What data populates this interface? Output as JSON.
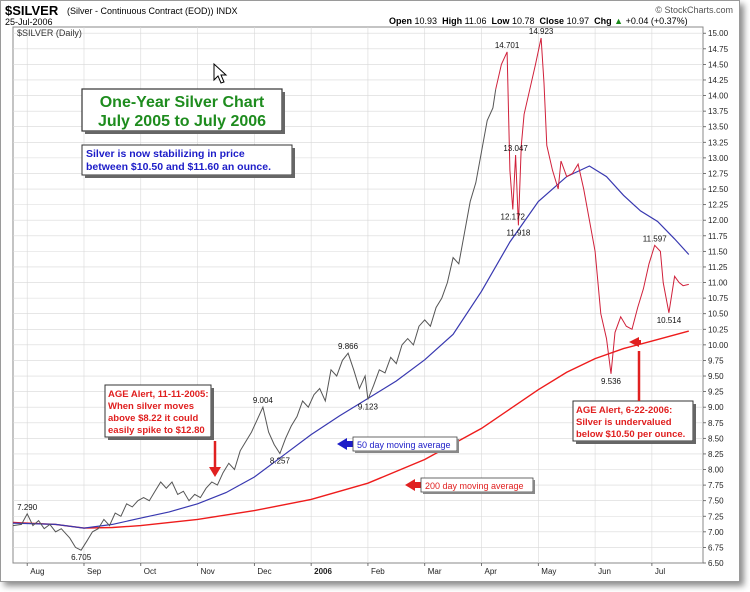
{
  "header": {
    "ticker": "$SILVER",
    "description": "(Silver - Continuous Contract (EOD))",
    "exchange": "INDX",
    "date": "25-Jul-2006",
    "credit": "© StockCharts.com",
    "open_label": "Open",
    "open": "10.93",
    "high_label": "High",
    "high": "11.06",
    "low_label": "Low",
    "low": "10.78",
    "close_label": "Close",
    "close": "10.97",
    "chg_label": "Chg",
    "chg": "+0.04 (+0.37%)",
    "chg_arrow": "▲"
  },
  "panel_label": "$SILVER (Daily)",
  "annotations": {
    "title_line1": "One-Year Silver Chart",
    "title_line2": "July 2005 to July 2006",
    "note_line1": "Silver is now stabilizing in price",
    "note_line2": "between $10.50 and $11.60 an ounce.",
    "alert1_line1": "AGE Alert, 11-11-2005:",
    "alert1_line2": "When silver moves",
    "alert1_line3": "above $8.22 it could",
    "alert1_line4": "easily spike to $12.80",
    "alert2_line1": "AGE Alert, 6-22-2006:",
    "alert2_line2": "Silver is undervalued",
    "alert2_line3": "below $10.50 per ounce.",
    "ma50_label": "50 day moving average",
    "ma200_label": "200 day moving average"
  },
  "colors": {
    "price": "#555555",
    "price_recent": "#d0203a",
    "ma50": "#3838b0",
    "ma200": "#ee1c1c",
    "title_green": "#1e8c1e",
    "alert_red": "#e02020",
    "note_blue": "#1c1cc8",
    "grid": "#d8d8d8"
  },
  "chart_data": {
    "type": "line",
    "x_unit": "month index (0 = 1 Aug 2005)",
    "xlim": [
      -0.25,
      11.9
    ],
    "ylim": [
      6.5,
      15.1
    ],
    "y_ticks": [
      6.5,
      6.75,
      7.0,
      7.25,
      7.5,
      7.75,
      8.0,
      8.25,
      8.5,
      8.75,
      9.0,
      9.25,
      9.5,
      9.75,
      10.0,
      10.25,
      10.5,
      10.75,
      11.0,
      11.25,
      11.5,
      11.75,
      12.0,
      12.25,
      12.5,
      12.75,
      13.0,
      13.25,
      13.5,
      13.75,
      14.0,
      14.25,
      14.5,
      14.75,
      15.0
    ],
    "x_ticks": [
      {
        "x": 0,
        "label": "Aug",
        "bold": false
      },
      {
        "x": 1,
        "label": "Sep",
        "bold": false
      },
      {
        "x": 2,
        "label": "Oct",
        "bold": false
      },
      {
        "x": 3,
        "label": "Nov",
        "bold": false
      },
      {
        "x": 4,
        "label": "Dec",
        "bold": false
      },
      {
        "x": 5,
        "label": "2006",
        "bold": true
      },
      {
        "x": 6,
        "label": "Feb",
        "bold": false
      },
      {
        "x": 7,
        "label": "Mar",
        "bold": false
      },
      {
        "x": 8,
        "label": "Apr",
        "bold": false
      },
      {
        "x": 9,
        "label": "May",
        "bold": false
      },
      {
        "x": 10,
        "label": "Jun",
        "bold": false
      },
      {
        "x": 11,
        "label": "Jul",
        "bold": false
      }
    ],
    "grid": true,
    "series": [
      {
        "name": "$SILVER",
        "points": [
          [
            -0.25,
            7.1
          ],
          [
            -0.1,
            7.12
          ],
          [
            0.0,
            7.29
          ],
          [
            0.1,
            7.1
          ],
          [
            0.2,
            7.18
          ],
          [
            0.3,
            7.05
          ],
          [
            0.4,
            7.12
          ],
          [
            0.5,
            7.0
          ],
          [
            0.6,
            7.05
          ],
          [
            0.75,
            6.9
          ],
          [
            0.85,
            6.75
          ],
          [
            0.95,
            6.705
          ],
          [
            1.05,
            6.85
          ],
          [
            1.15,
            7.0
          ],
          [
            1.25,
            7.05
          ],
          [
            1.35,
            7.2
          ],
          [
            1.45,
            7.1
          ],
          [
            1.55,
            7.3
          ],
          [
            1.65,
            7.25
          ],
          [
            1.75,
            7.45
          ],
          [
            1.85,
            7.4
          ],
          [
            1.95,
            7.5
          ],
          [
            2.05,
            7.55
          ],
          [
            2.15,
            7.5
          ],
          [
            2.25,
            7.65
          ],
          [
            2.35,
            7.8
          ],
          [
            2.45,
            7.7
          ],
          [
            2.55,
            7.8
          ],
          [
            2.65,
            7.6
          ],
          [
            2.75,
            7.65
          ],
          [
            2.85,
            7.5
          ],
          [
            2.95,
            7.6
          ],
          [
            3.05,
            7.55
          ],
          [
            3.15,
            7.7
          ],
          [
            3.25,
            7.8
          ],
          [
            3.35,
            7.75
          ],
          [
            3.45,
            7.95
          ],
          [
            3.55,
            8.1
          ],
          [
            3.65,
            8.0
          ],
          [
            3.75,
            8.3
          ],
          [
            3.85,
            8.45
          ],
          [
            3.95,
            8.6
          ],
          [
            4.05,
            8.8
          ],
          [
            4.15,
            9.0
          ],
          [
            4.25,
            8.6
          ],
          [
            4.35,
            8.4
          ],
          [
            4.45,
            8.257
          ],
          [
            4.55,
            8.5
          ],
          [
            4.65,
            8.7
          ],
          [
            4.75,
            8.85
          ],
          [
            4.85,
            9.1
          ],
          [
            4.95,
            9.0
          ],
          [
            5.05,
            9.2
          ],
          [
            5.15,
            9.3
          ],
          [
            5.25,
            9.1
          ],
          [
            5.35,
            9.6
          ],
          [
            5.45,
            9.5
          ],
          [
            5.55,
            9.75
          ],
          [
            5.65,
            9.866
          ],
          [
            5.75,
            9.6
          ],
          [
            5.85,
            9.3
          ],
          [
            5.95,
            9.5
          ],
          [
            6.0,
            9.123
          ],
          [
            6.1,
            9.35
          ],
          [
            6.2,
            9.6
          ],
          [
            6.3,
            9.55
          ],
          [
            6.4,
            9.8
          ],
          [
            6.5,
            9.7
          ],
          [
            6.6,
            10.0
          ],
          [
            6.7,
            10.1
          ],
          [
            6.8,
            10.0
          ],
          [
            6.9,
            10.3
          ],
          [
            7.0,
            10.4
          ],
          [
            7.1,
            10.3
          ],
          [
            7.2,
            10.6
          ],
          [
            7.3,
            10.75
          ],
          [
            7.4,
            11.0
          ],
          [
            7.5,
            11.4
          ],
          [
            7.6,
            11.3
          ],
          [
            7.7,
            11.8
          ],
          [
            7.8,
            12.3
          ],
          [
            7.9,
            12.6
          ],
          [
            8.0,
            13.1
          ],
          [
            8.1,
            13.6
          ],
          [
            8.2,
            13.8
          ],
          [
            8.25,
            14.1
          ],
          [
            8.35,
            14.5
          ],
          [
            8.45,
            14.701
          ],
          [
            8.5,
            12.8
          ],
          [
            8.55,
            12.172
          ],
          [
            8.6,
            13.047
          ],
          [
            8.65,
            11.918
          ],
          [
            8.7,
            13.2
          ],
          [
            8.75,
            13.7
          ],
          [
            8.85,
            14.1
          ],
          [
            8.95,
            14.5
          ],
          [
            9.05,
            14.923
          ],
          [
            9.1,
            14.2
          ],
          [
            9.15,
            13.2
          ],
          [
            9.25,
            12.8
          ],
          [
            9.35,
            12.5
          ],
          [
            9.4,
            12.95
          ],
          [
            9.5,
            12.7
          ],
          [
            9.6,
            12.75
          ],
          [
            9.7,
            12.9
          ],
          [
            9.8,
            12.5
          ],
          [
            9.9,
            12.0
          ],
          [
            10.0,
            11.5
          ],
          [
            10.1,
            10.5
          ],
          [
            10.2,
            10.1
          ],
          [
            10.28,
            9.536
          ],
          [
            10.35,
            10.2
          ],
          [
            10.45,
            10.45
          ],
          [
            10.55,
            10.3
          ],
          [
            10.65,
            10.25
          ],
          [
            10.75,
            10.6
          ],
          [
            10.85,
            10.9
          ],
          [
            10.95,
            11.3
          ],
          [
            11.05,
            11.597
          ],
          [
            11.15,
            11.5
          ],
          [
            11.2,
            11.0
          ],
          [
            11.3,
            10.514
          ],
          [
            11.4,
            11.1
          ],
          [
            11.48,
            11.0
          ],
          [
            11.55,
            10.95
          ],
          [
            11.65,
            10.97
          ]
        ]
      },
      {
        "name": "50 day moving average",
        "points": [
          [
            -0.25,
            7.14
          ],
          [
            0.5,
            7.12
          ],
          [
            1.0,
            7.06
          ],
          [
            1.5,
            7.12
          ],
          [
            2.0,
            7.22
          ],
          [
            2.5,
            7.32
          ],
          [
            3.0,
            7.45
          ],
          [
            3.5,
            7.63
          ],
          [
            4.0,
            7.88
          ],
          [
            4.5,
            8.22
          ],
          [
            5.0,
            8.56
          ],
          [
            5.5,
            8.86
          ],
          [
            6.0,
            9.14
          ],
          [
            6.5,
            9.42
          ],
          [
            7.0,
            9.76
          ],
          [
            7.5,
            10.17
          ],
          [
            8.0,
            10.86
          ],
          [
            8.5,
            11.65
          ],
          [
            9.0,
            12.3
          ],
          [
            9.5,
            12.7
          ],
          [
            9.9,
            12.87
          ],
          [
            10.2,
            12.7
          ],
          [
            10.5,
            12.4
          ],
          [
            10.8,
            12.15
          ],
          [
            11.1,
            11.98
          ],
          [
            11.4,
            11.7
          ],
          [
            11.65,
            11.45
          ]
        ]
      },
      {
        "name": "200 day moving average",
        "points": [
          [
            -0.25,
            7.15
          ],
          [
            0.5,
            7.12
          ],
          [
            1.0,
            7.06
          ],
          [
            1.5,
            7.07
          ],
          [
            2.0,
            7.1
          ],
          [
            3.0,
            7.2
          ],
          [
            4.0,
            7.34
          ],
          [
            5.0,
            7.52
          ],
          [
            6.0,
            7.78
          ],
          [
            7.0,
            8.16
          ],
          [
            8.0,
            8.66
          ],
          [
            8.5,
            8.97
          ],
          [
            9.0,
            9.28
          ],
          [
            9.5,
            9.56
          ],
          [
            10.0,
            9.78
          ],
          [
            10.5,
            9.94
          ],
          [
            11.0,
            10.06
          ],
          [
            11.65,
            10.22
          ]
        ]
      }
    ],
    "data_labels": [
      {
        "x": 0.0,
        "y": 7.29,
        "text": "7.290",
        "pos": "above"
      },
      {
        "x": 0.95,
        "y": 6.705,
        "text": "6.705",
        "pos": "below"
      },
      {
        "x": 4.15,
        "y": 9.0,
        "text": "9.004",
        "pos": "above"
      },
      {
        "x": 4.45,
        "y": 8.257,
        "text": "8.257",
        "pos": "below"
      },
      {
        "x": 5.65,
        "y": 9.866,
        "text": "9.866",
        "pos": "above"
      },
      {
        "x": 6.0,
        "y": 9.123,
        "text": "9.123",
        "pos": "below"
      },
      {
        "x": 8.45,
        "y": 14.701,
        "text": "14.701",
        "pos": "above"
      },
      {
        "x": 8.6,
        "y": 13.047,
        "text": "13.047",
        "pos": "above"
      },
      {
        "x": 8.55,
        "y": 12.172,
        "text": "12.172",
        "pos": "below"
      },
      {
        "x": 8.65,
        "y": 11.918,
        "text": "11.918",
        "pos": "below"
      },
      {
        "x": 9.05,
        "y": 14.923,
        "text": "14.923",
        "pos": "above"
      },
      {
        "x": 10.28,
        "y": 9.536,
        "text": "9.536",
        "pos": "below"
      },
      {
        "x": 11.05,
        "y": 11.597,
        "text": "11.597",
        "pos": "above"
      },
      {
        "x": 11.3,
        "y": 10.514,
        "text": "10.514",
        "pos": "below"
      }
    ]
  }
}
